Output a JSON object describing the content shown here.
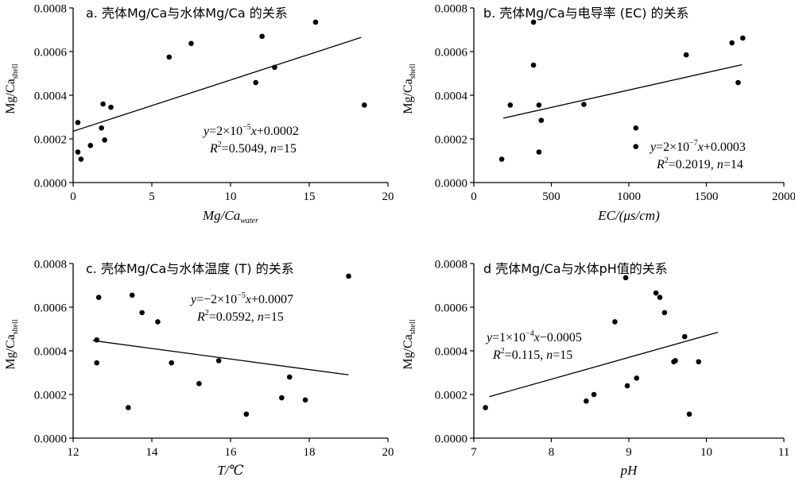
{
  "chart_data": [
    {
      "type": "scatter",
      "title": "a. 壳体Mg/Ca与水体Mg/Ca 的关系",
      "xlabel": {
        "main": "Mg/Ca",
        "sub": "water"
      },
      "ylabel": {
        "main": "Mg/Ca",
        "sub": "shell"
      },
      "xlim": [
        0,
        20
      ],
      "ylim": [
        0,
        0.0008
      ],
      "xticks": [
        "0",
        "5",
        "10",
        "15",
        "20"
      ],
      "yticks": [
        "0.0000",
        "0.0002",
        "0.0004",
        "0.0006",
        "0.0008"
      ],
      "grid": false,
      "points": [
        {
          "x": 0.3,
          "y": 0.000275
        },
        {
          "x": 0.3,
          "y": 0.00014
        },
        {
          "x": 0.5,
          "y": 0.000107
        },
        {
          "x": 1.1,
          "y": 0.00017
        },
        {
          "x": 1.8,
          "y": 0.00025
        },
        {
          "x": 1.9,
          "y": 0.00036
        },
        {
          "x": 2.0,
          "y": 0.000195
        },
        {
          "x": 2.4,
          "y": 0.000345
        },
        {
          "x": 6.1,
          "y": 0.000575
        },
        {
          "x": 7.5,
          "y": 0.000637
        },
        {
          "x": 11.6,
          "y": 0.000458
        },
        {
          "x": 12.0,
          "y": 0.00067
        },
        {
          "x": 12.8,
          "y": 0.000528
        },
        {
          "x": 15.4,
          "y": 0.000735
        },
        {
          "x": 18.5,
          "y": 0.000355
        }
      ],
      "trendline": {
        "x": [
          0,
          18.3
        ],
        "y": [
          0.000235,
          0.000665
        ]
      },
      "equation": {
        "y": "y",
        "eq1": "=2×10",
        "exp": "−5",
        "x": "x",
        "eq2": "+0.0002"
      },
      "stats": {
        "r2label": "R",
        "sup": "2",
        "r2value": "=0.5049,",
        "nlabel": "n",
        "nvalue": "=15"
      }
    },
    {
      "type": "scatter",
      "title": "b. 壳体Mg/Ca与电导率 (EC) 的关系",
      "xlabel": {
        "main": "EC/(μs/cm)",
        "sub": ""
      },
      "ylabel": {
        "main": "Mg/Ca",
        "sub": "shell"
      },
      "xlim": [
        0,
        2000
      ],
      "ylim": [
        0,
        0.0008
      ],
      "xticks": [
        "0",
        "500",
        "1000",
        "1500",
        "2000"
      ],
      "yticks": [
        "0.0000",
        "0.0002",
        "0.0004",
        "0.0006",
        "0.0008"
      ],
      "grid": false,
      "points": [
        {
          "x": 180,
          "y": 0.000107
        },
        {
          "x": 235,
          "y": 0.000355
        },
        {
          "x": 385,
          "y": 0.000735
        },
        {
          "x": 385,
          "y": 0.000538
        },
        {
          "x": 420,
          "y": 0.000355
        },
        {
          "x": 420,
          "y": 0.00014
        },
        {
          "x": 435,
          "y": 0.000285
        },
        {
          "x": 710,
          "y": 0.000358
        },
        {
          "x": 1045,
          "y": 0.00025
        },
        {
          "x": 1045,
          "y": 0.000165
        },
        {
          "x": 1370,
          "y": 0.000585
        },
        {
          "x": 1665,
          "y": 0.00064
        },
        {
          "x": 1705,
          "y": 0.000458
        },
        {
          "x": 1735,
          "y": 0.000662
        }
      ],
      "trendline": {
        "x": [
          190,
          1730
        ],
        "y": [
          0.000295,
          0.00054
        ]
      },
      "equation": {
        "y": "y",
        "eq1": "=2×10",
        "exp": "−7",
        "x": "x",
        "eq2": "+0.0003"
      },
      "stats": {
        "r2label": "R",
        "sup": "2",
        "r2value": "=0.2019,",
        "nlabel": "n",
        "nvalue": "=14"
      }
    },
    {
      "type": "scatter",
      "title": "c. 壳体Mg/Ca与水体温度 (T) 的关系",
      "xlabel": {
        "main": "T/℃",
        "sub": ""
      },
      "ylabel": {
        "main": "Mg/Ca",
        "sub": "shell"
      },
      "xlim": [
        12,
        20
      ],
      "ylim": [
        0,
        0.0008
      ],
      "xticks": [
        "12",
        "14",
        "16",
        "18",
        "20"
      ],
      "yticks": [
        "0.0000",
        "0.0002",
        "0.0004",
        "0.0006",
        "0.0008"
      ],
      "grid": false,
      "points": [
        {
          "x": 12.6,
          "y": 0.00045
        },
        {
          "x": 12.6,
          "y": 0.000345
        },
        {
          "x": 12.65,
          "y": 0.000645
        },
        {
          "x": 13.4,
          "y": 0.00014
        },
        {
          "x": 13.5,
          "y": 0.000655
        },
        {
          "x": 13.75,
          "y": 0.000575
        },
        {
          "x": 14.15,
          "y": 0.000533
        },
        {
          "x": 14.5,
          "y": 0.000345
        },
        {
          "x": 15.2,
          "y": 0.00025
        },
        {
          "x": 15.7,
          "y": 0.000355
        },
        {
          "x": 16.4,
          "y": 0.00011
        },
        {
          "x": 17.3,
          "y": 0.000185
        },
        {
          "x": 17.5,
          "y": 0.00028
        },
        {
          "x": 17.9,
          "y": 0.000175
        },
        {
          "x": 19.0,
          "y": 0.000742
        }
      ],
      "trendline": {
        "x": [
          12.5,
          19.0
        ],
        "y": [
          0.000447,
          0.00029
        ]
      },
      "equation": {
        "y": "y",
        "eq1": "=−2×10",
        "exp": "−5",
        "x": "x",
        "eq2": "+0.0007"
      },
      "stats": {
        "r2label": "R",
        "sup": "2",
        "r2value": "=0.0592,",
        "nlabel": "n",
        "nvalue": "=15"
      }
    },
    {
      "type": "scatter",
      "title": "d 壳体Mg/Ca与水体pH值的关系",
      "xlabel": {
        "main": "pH",
        "sub": ""
      },
      "ylabel": {
        "main": "Mg/Ca",
        "sub": "shell"
      },
      "xlim": [
        7,
        11
      ],
      "ylim": [
        0,
        0.0008
      ],
      "xticks": [
        "7",
        "8",
        "9",
        "10",
        "11"
      ],
      "yticks": [
        "0.0000",
        "0.0002",
        "0.0004",
        "0.0006",
        "0.0008"
      ],
      "grid": false,
      "points": [
        {
          "x": 7.15,
          "y": 0.00014
        },
        {
          "x": 8.45,
          "y": 0.00017
        },
        {
          "x": 8.55,
          "y": 0.0002
        },
        {
          "x": 8.82,
          "y": 0.000533
        },
        {
          "x": 8.96,
          "y": 0.000735
        },
        {
          "x": 8.98,
          "y": 0.00024
        },
        {
          "x": 9.1,
          "y": 0.000275
        },
        {
          "x": 9.35,
          "y": 0.000665
        },
        {
          "x": 9.4,
          "y": 0.000645
        },
        {
          "x": 9.46,
          "y": 0.000575
        },
        {
          "x": 9.58,
          "y": 0.00035
        },
        {
          "x": 9.6,
          "y": 0.000355
        },
        {
          "x": 9.72,
          "y": 0.000465
        },
        {
          "x": 9.78,
          "y": 0.00011
        },
        {
          "x": 9.9,
          "y": 0.00035
        }
      ],
      "trendline": {
        "x": [
          7.2,
          10.15
        ],
        "y": [
          0.00019,
          0.000485
        ]
      },
      "equation": {
        "y": "y",
        "eq1": "=1×10",
        "exp": "−4",
        "x": "x",
        "eq2": "−0.0005"
      },
      "stats": {
        "r2label": "R",
        "sup": "2",
        "r2value": "=0.115,",
        "nlabel": "n",
        "nvalue": "=15"
      }
    }
  ]
}
